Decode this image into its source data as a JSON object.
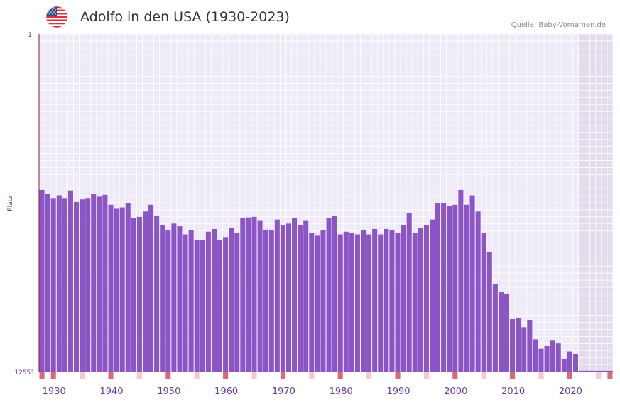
{
  "header": {
    "title": "Adolfo in den USA (1930-2023)",
    "source": "Quelle: Baby-Vornamen.de",
    "flag_icon": "us-flag-icon"
  },
  "colors": {
    "bar": "#8b55c6",
    "plot_bg": "#efeaf8",
    "grid": "#ffffff",
    "future_bg": "#e2dcec",
    "axis": "#8b1a3a",
    "tick_marker": "#d96a78",
    "tick_marker_light": "#f4c9cf"
  },
  "chart_data": {
    "type": "bar",
    "title": "Adolfo in den USA (1930-2023)",
    "ylabel": "Platz",
    "y_top_label": "1",
    "y_bottom_label": "12551",
    "ylim": [
      1,
      12551
    ],
    "y_inverted": true,
    "xlim": [
      1928,
      2028
    ],
    "xticks": [
      "1930",
      "1940",
      "1950",
      "1960",
      "1970",
      "1980",
      "1990",
      "2000",
      "2010",
      "2020"
    ],
    "xtick_values": [
      1930,
      1940,
      1950,
      1960,
      1970,
      1980,
      1990,
      2000,
      2010,
      2020
    ],
    "shaded_from_year": 2022,
    "years": [
      1928,
      1929,
      1930,
      1931,
      1932,
      1933,
      1934,
      1935,
      1936,
      1937,
      1938,
      1939,
      1940,
      1941,
      1942,
      1943,
      1944,
      1945,
      1946,
      1947,
      1948,
      1949,
      1950,
      1951,
      1952,
      1953,
      1954,
      1955,
      1956,
      1957,
      1958,
      1959,
      1960,
      1961,
      1962,
      1963,
      1964,
      1965,
      1966,
      1967,
      1968,
      1969,
      1970,
      1971,
      1972,
      1973,
      1974,
      1975,
      1976,
      1977,
      1978,
      1979,
      1980,
      1981,
      1982,
      1983,
      1984,
      1985,
      1986,
      1987,
      1988,
      1989,
      1990,
      1991,
      1992,
      1993,
      1994,
      1995,
      1996,
      1997,
      1998,
      1999,
      2000,
      2001,
      2002,
      2003,
      2004,
      2005,
      2006,
      2007,
      2008,
      2009,
      2010,
      2011,
      2012,
      2013,
      2014,
      2015,
      2016,
      2017,
      2018,
      2019,
      2020,
      2021
    ],
    "values": [
      5800,
      5950,
      6100,
      6000,
      6100,
      5820,
      6250,
      6150,
      6100,
      5950,
      6050,
      5980,
      6350,
      6500,
      6450,
      6300,
      6850,
      6800,
      6600,
      6350,
      6750,
      7100,
      7300,
      7050,
      7150,
      7450,
      7300,
      7650,
      7650,
      7350,
      7250,
      7650,
      7550,
      7200,
      7400,
      6850,
      6820,
      6800,
      6950,
      7300,
      7300,
      6900,
      7100,
      7050,
      6850,
      7100,
      6950,
      7400,
      7500,
      7300,
      6850,
      6750,
      7450,
      7350,
      7400,
      7450,
      7300,
      7450,
      7250,
      7450,
      7250,
      7300,
      7400,
      7100,
      6650,
      7400,
      7200,
      7100,
      6900,
      6300,
      6300,
      6400,
      6350,
      5800,
      6350,
      6000,
      6600,
      7400,
      8100,
      9300,
      9600,
      9650,
      10600,
      10550,
      10900,
      10650,
      11350,
      11700,
      11600,
      11400,
      11500,
      12100,
      11800,
      11900
    ],
    "series_name": "Platz"
  }
}
